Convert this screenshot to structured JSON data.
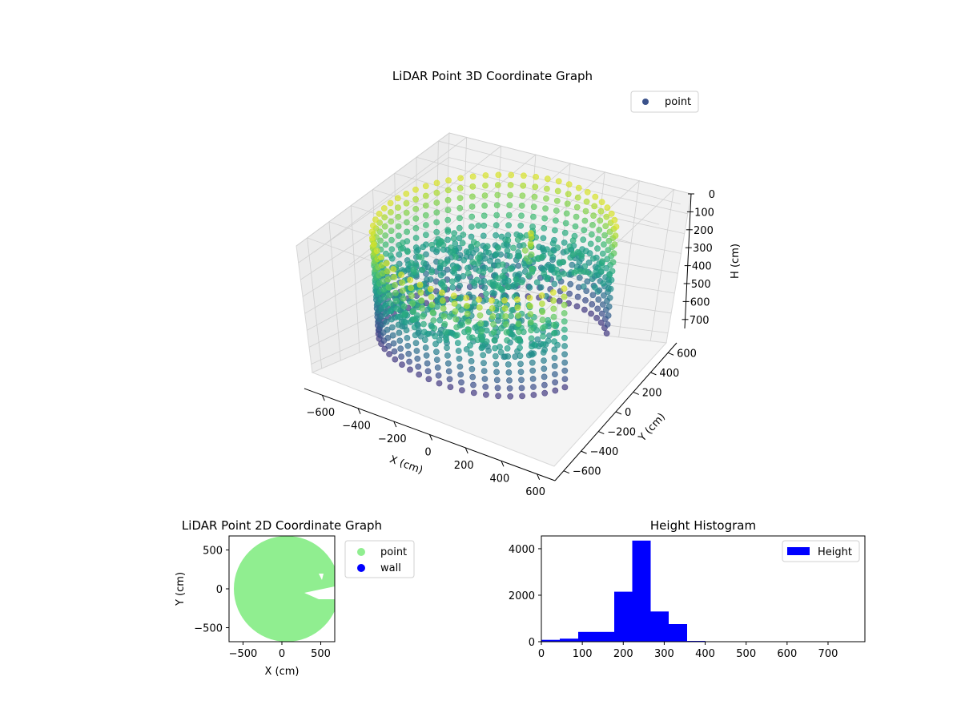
{
  "chart_data": [
    {
      "type": "scatter",
      "projection": "3d",
      "title": "LiDAR Point 3D Coordinate Graph",
      "xlabel": "X (cm)",
      "ylabel": "Y (cm)",
      "zlabel": "H (cm)",
      "xlim": [
        -700,
        700
      ],
      "ylim": [
        -700,
        700
      ],
      "zlim": [
        0,
        750
      ],
      "z_inverted": true,
      "xticks": [
        -600,
        -400,
        -200,
        0,
        200,
        400,
        600
      ],
      "yticks": [
        -600,
        -400,
        -200,
        0,
        200,
        400,
        600
      ],
      "zticks": [
        0,
        100,
        200,
        300,
        400,
        500,
        600,
        700
      ],
      "colormap": "viridis",
      "legend": {
        "location": "upper-right",
        "entries": [
          "point"
        ]
      },
      "legend_marker_color": "#3b528b",
      "series": [
        {
          "name": "point",
          "shape": "ring wall with interior floor",
          "wall_radius_cm": 600,
          "wall_height_range_cm": [
            40,
            620
          ],
          "floor_height_range_cm": [
            250,
            380
          ],
          "opening_angle_range_deg": [
            -20,
            35
          ]
        }
      ]
    },
    {
      "type": "scatter",
      "title": "LiDAR Point 2D Coordinate Graph",
      "xlabel": "X (cm)",
      "ylabel": "Y (cm)",
      "xlim": [
        -680,
        680
      ],
      "ylim": [
        -680,
        680
      ],
      "xticks": [
        -500,
        0,
        500
      ],
      "yticks": [
        -500,
        0,
        500
      ],
      "legend": {
        "location": "outside-right",
        "entries": [
          "point",
          "wall"
        ]
      },
      "series": [
        {
          "name": "point",
          "color": "#90ee90",
          "shape": "filled disk of radius ≈ 620 cm centered near (60, 0)"
        },
        {
          "name": "wall",
          "color": "#0000ff"
        }
      ]
    },
    {
      "type": "bar",
      "title": "Height Histogram",
      "xlim": [
        0,
        790
      ],
      "ylim": [
        0,
        4550
      ],
      "xticks": [
        0,
        100,
        200,
        300,
        400,
        500,
        600,
        700
      ],
      "yticks": [
        0,
        2000,
        4000
      ],
      "color": "#0000ff",
      "legend": {
        "location": "top-right",
        "entries": [
          "Height"
        ]
      },
      "bins": [
        {
          "x0": 0,
          "x1": 45,
          "value": 80
        },
        {
          "x0": 45,
          "x1": 90,
          "value": 130
        },
        {
          "x0": 90,
          "x1": 178,
          "value": 420
        },
        {
          "x0": 178,
          "x1": 222,
          "value": 2150
        },
        {
          "x0": 222,
          "x1": 267,
          "value": 4350
        },
        {
          "x0": 267,
          "x1": 311,
          "value": 1300
        },
        {
          "x0": 311,
          "x1": 356,
          "value": 760
        },
        {
          "x0": 356,
          "x1": 400,
          "value": 35
        },
        {
          "x0": 400,
          "x1": 790,
          "value": 5
        }
      ]
    }
  ]
}
